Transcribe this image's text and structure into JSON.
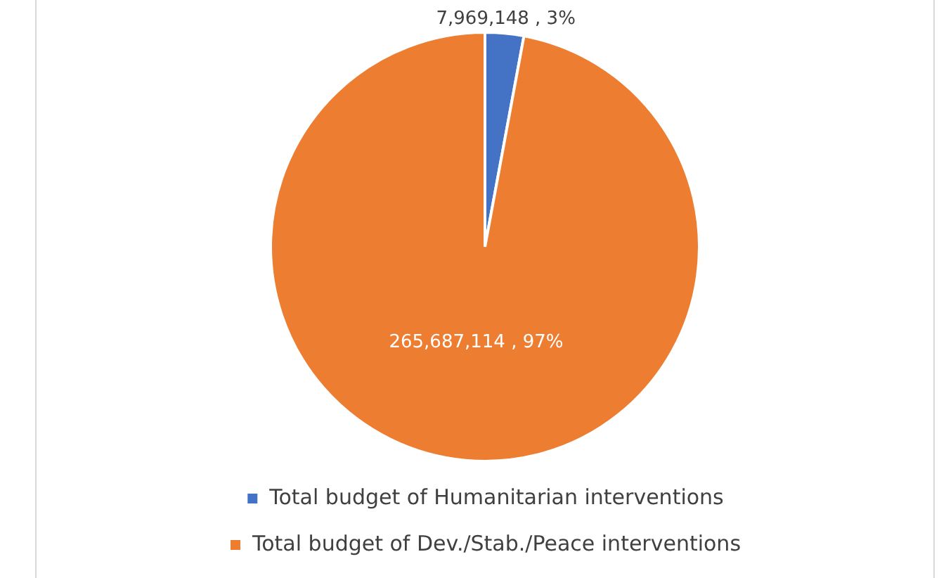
{
  "chart_data": {
    "type": "pie",
    "categories": [
      "Total budget of Humanitarian interventions",
      "Total budget of Dev./Stab./Peace interventions"
    ],
    "values": [
      7969148,
      265687114
    ],
    "colors": [
      "#4472c4",
      "#ed7d31"
    ],
    "value_labels": [
      "7,969,148 , 3%",
      "265,687,114 , 97%"
    ],
    "legend": "bottom"
  }
}
